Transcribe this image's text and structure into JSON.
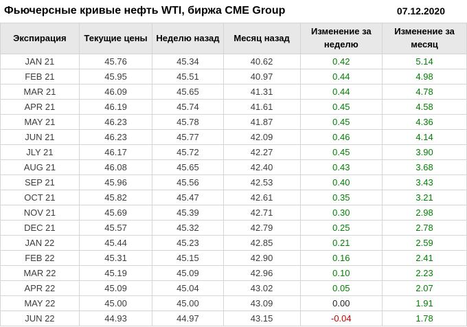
{
  "header": {
    "title": "Фьючерсные кривые нефть WTI, биржа CME Group",
    "date": "07.12.2020"
  },
  "colors": {
    "positive": "#008000",
    "negative": "#cc0000",
    "neutral": "#222222",
    "header_bg": "#e8e8e8",
    "border": "#d4d4d4"
  },
  "chart_data": {
    "type": "table",
    "title": "Фьючерсные кривые нефть WTI, биржа CME Group",
    "date": "07.12.2020",
    "columns": [
      "Экспирация",
      "Текущие цены",
      "Неделю назад",
      "Месяц назад",
      "Изменение за неделю",
      "Изменение за месяц"
    ],
    "rows": [
      [
        "JAN 21",
        "45.76",
        "45.34",
        "40.62",
        "0.42",
        "5.14"
      ],
      [
        "FEB 21",
        "45.95",
        "45.51",
        "40.97",
        "0.44",
        "4.98"
      ],
      [
        "MAR 21",
        "46.09",
        "45.65",
        "41.31",
        "0.44",
        "4.78"
      ],
      [
        "APR 21",
        "46.19",
        "45.74",
        "41.61",
        "0.45",
        "4.58"
      ],
      [
        "MAY 21",
        "46.23",
        "45.78",
        "41.87",
        "0.45",
        "4.36"
      ],
      [
        "JUN 21",
        "46.23",
        "45.77",
        "42.09",
        "0.46",
        "4.14"
      ],
      [
        "JLY 21",
        "46.17",
        "45.72",
        "42.27",
        "0.45",
        "3.90"
      ],
      [
        "AUG 21",
        "46.08",
        "45.65",
        "42.40",
        "0.43",
        "3.68"
      ],
      [
        "SEP 21",
        "45.96",
        "45.56",
        "42.53",
        "0.40",
        "3.43"
      ],
      [
        "OCT 21",
        "45.82",
        "45.47",
        "42.61",
        "0.35",
        "3.21"
      ],
      [
        "NOV 21",
        "45.69",
        "45.39",
        "42.71",
        "0.30",
        "2.98"
      ],
      [
        "DEC 21",
        "45.57",
        "45.32",
        "42.79",
        "0.25",
        "2.78"
      ],
      [
        "JAN 22",
        "45.44",
        "45.23",
        "42.85",
        "0.21",
        "2.59"
      ],
      [
        "FEB 22",
        "45.31",
        "45.15",
        "42.90",
        "0.16",
        "2.41"
      ],
      [
        "MAR 22",
        "45.19",
        "45.09",
        "42.96",
        "0.10",
        "2.23"
      ],
      [
        "APR 22",
        "45.09",
        "45.04",
        "43.02",
        "0.05",
        "2.07"
      ],
      [
        "MAY 22",
        "45.00",
        "45.00",
        "43.09",
        "0.00",
        "1.91"
      ],
      [
        "JUN 22",
        "44.93",
        "44.97",
        "43.15",
        "-0.04",
        "1.78"
      ]
    ],
    "change_column_indexes": [
      4,
      5
    ],
    "legend_position": "none",
    "grid": true
  }
}
